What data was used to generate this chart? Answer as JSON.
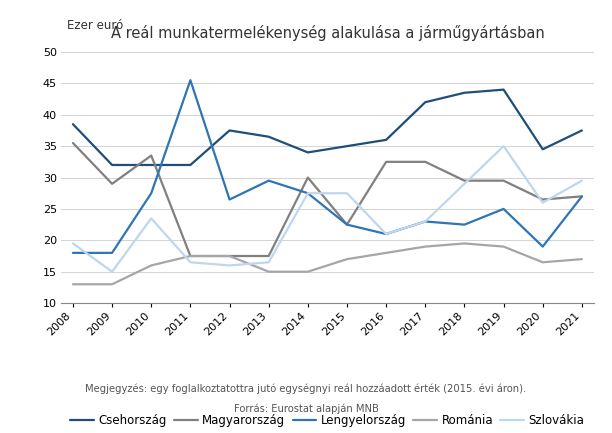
{
  "title": "A reál munkatermelékenység alakulása a járműgyártásban",
  "ylabel": "Ezer euró",
  "note": "Megjegyzés: egy foglalkoztatottra jutó egységnyi reál hozzáadott érték (2015. évi áron).",
  "source": "Forrás: Eurostat alapján MNB",
  "years": [
    2008,
    2009,
    2010,
    2011,
    2012,
    2013,
    2014,
    2015,
    2016,
    2017,
    2018,
    2019,
    2020,
    2021
  ],
  "series": {
    "Csehország": {
      "values": [
        38.5,
        32.0,
        32.0,
        32.0,
        37.5,
        36.5,
        34.0,
        35.0,
        36.0,
        42.0,
        43.5,
        44.0,
        34.5,
        37.5
      ],
      "color": "#1F4E79",
      "linewidth": 1.6
    },
    "Magyarország": {
      "values": [
        35.5,
        29.0,
        33.5,
        17.5,
        17.5,
        17.5,
        30.0,
        22.5,
        32.5,
        32.5,
        29.5,
        29.5,
        26.5,
        27.0
      ],
      "color": "#808080",
      "linewidth": 1.6
    },
    "Lengyelország": {
      "values": [
        18.0,
        18.0,
        27.5,
        45.5,
        26.5,
        29.5,
        27.5,
        22.5,
        21.0,
        23.0,
        22.5,
        25.0,
        19.0,
        27.0
      ],
      "color": "#2E75B6",
      "linewidth": 1.6
    },
    "Románia": {
      "values": [
        13.0,
        13.0,
        16.0,
        17.5,
        17.5,
        15.0,
        15.0,
        17.0,
        18.0,
        19.0,
        19.5,
        19.0,
        16.5,
        17.0
      ],
      "color": "#A6A6A6",
      "linewidth": 1.6
    },
    "Szlovákia": {
      "values": [
        19.5,
        15.0,
        23.5,
        16.5,
        16.0,
        16.5,
        27.5,
        27.5,
        21.0,
        23.0,
        29.0,
        35.0,
        26.0,
        29.5
      ],
      "color": "#BDD7EE",
      "linewidth": 1.6
    }
  },
  "ylim": [
    10,
    50
  ],
  "yticks": [
    10,
    15,
    20,
    25,
    30,
    35,
    40,
    45,
    50
  ],
  "background_color": "#FFFFFF",
  "grid_color": "#D3D3D3",
  "title_fontsize": 10.5,
  "label_fontsize": 8.5,
  "tick_fontsize": 8,
  "legend_fontsize": 8.5,
  "note_fontsize": 7.2
}
